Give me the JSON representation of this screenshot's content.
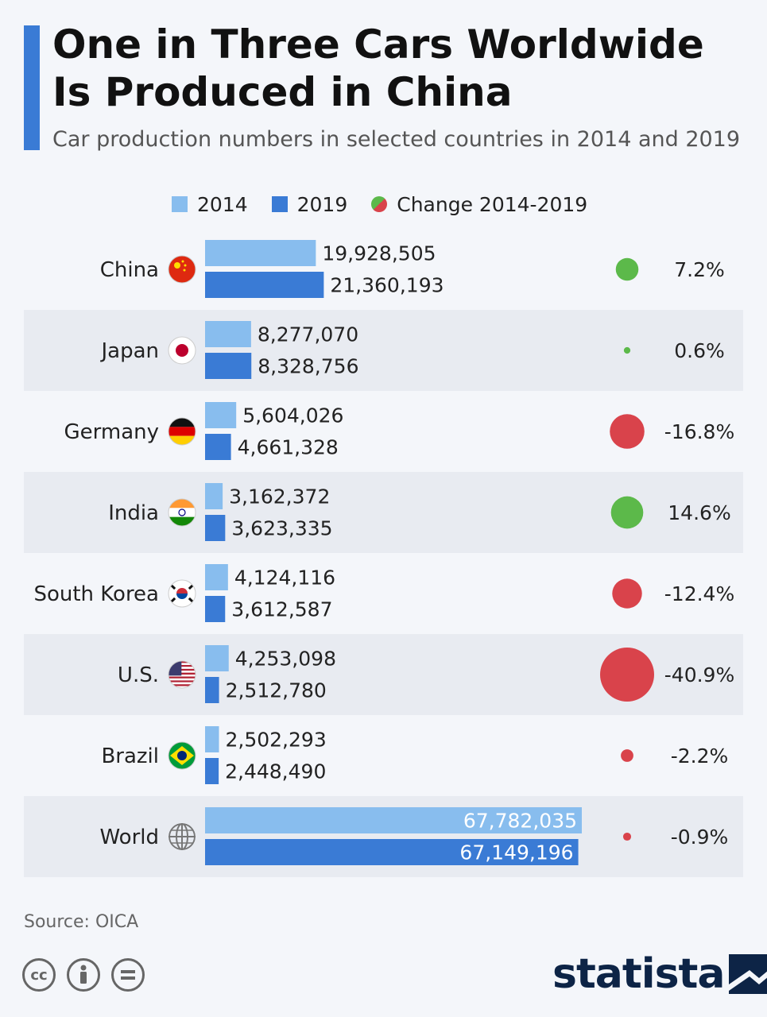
{
  "header": {
    "title_line1": "One in Three Cars Worldwide",
    "title_line2": "Is Produced in China",
    "subtitle": "Car production numbers in selected countries in 2014 and 2019"
  },
  "legend": {
    "item_2014": "2014",
    "item_2019": "2019",
    "item_change": "Change 2014-2019"
  },
  "colors": {
    "bar_2014": "#88bdee",
    "bar_2019": "#3a7bd5",
    "positive": "#5cb94a",
    "negative": "#d9434b",
    "stripe": "#e8ebf1",
    "accent": "#3a7bd5"
  },
  "chart_data": {
    "type": "bar",
    "orientation": "horizontal",
    "title": "One in Three Cars Worldwide Is Produced in China",
    "subtitle": "Car production numbers in selected countries in 2014 and 2019",
    "categories": [
      "China",
      "Japan",
      "Germany",
      "India",
      "South Korea",
      "U.S.",
      "Brazil",
      "World"
    ],
    "flags": [
      "flag-china-icon",
      "flag-japan-icon",
      "flag-germany-icon",
      "flag-india-icon",
      "flag-south-korea-icon",
      "flag-us-icon",
      "flag-brazil-icon",
      "globe-icon"
    ],
    "series": [
      {
        "name": "2014",
        "values": [
          19928505,
          8277070,
          5604026,
          3162372,
          4124116,
          4253098,
          2502293,
          67782035
        ],
        "labels": [
          "19,928,505",
          "8,277,070",
          "5,604,026",
          "3,162,372",
          "4,124,116",
          "4,253,098",
          "2,502,293",
          "67,782,035"
        ]
      },
      {
        "name": "2019",
        "values": [
          21360193,
          8328756,
          4661328,
          3623335,
          3612587,
          2512780,
          2448490,
          67149196
        ],
        "labels": [
          "21,360,193",
          "8,328,756",
          "4,661,328",
          "3,623,335",
          "3,612,587",
          "2,512,780",
          "2,448,490",
          "67,149,196"
        ]
      }
    ],
    "change": {
      "name": "Change 2014-2019",
      "values": [
        7.2,
        0.6,
        -16.8,
        14.6,
        -12.4,
        -40.9,
        -2.2,
        -0.9
      ],
      "labels": [
        "7.2%",
        "0.6%",
        "-16.8%",
        "14.6%",
        "-12.4%",
        "-40.9%",
        "-2.2%",
        "-0.9%"
      ]
    },
    "xlim": [
      0,
      67782035
    ],
    "legend_position": "top",
    "grid": false
  },
  "footer": {
    "source": "Source: OICA",
    "cc_icons": [
      "cc-icon",
      "by-icon",
      "nd-icon"
    ],
    "logo_text": "statista"
  }
}
